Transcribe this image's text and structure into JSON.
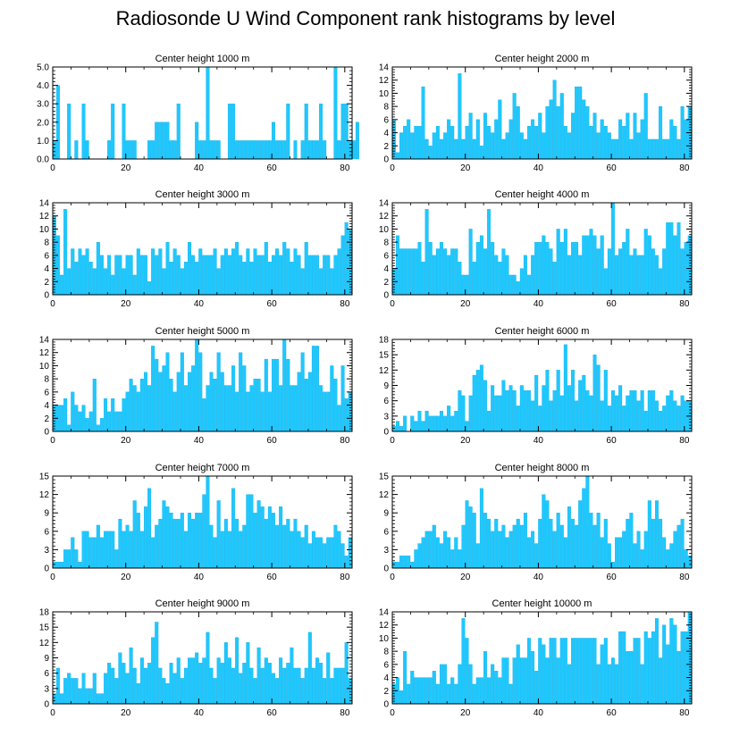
{
  "title": "Radiosonde U Wind Component rank histograms by level",
  "colors": {
    "bar": "#1ec8ff",
    "bar_edge": "#0aa6dc",
    "axis": "#000000"
  },
  "chart_data": [
    {
      "type": "bar",
      "title": "Center height 1000 m",
      "xlim": [
        0,
        82
      ],
      "ylim": [
        0,
        5
      ],
      "xticks": [
        0,
        20,
        40,
        60,
        80
      ],
      "xtick_labels": [
        "0",
        "20",
        "40",
        "60",
        "80"
      ],
      "yticks": [
        0,
        1,
        2,
        3,
        4,
        5
      ],
      "ytick_labels": [
        "0.0",
        "1.0",
        "2.0",
        "3.0",
        "4.0",
        "5.0"
      ],
      "values": [
        1,
        4,
        0,
        0,
        3,
        0,
        1,
        0,
        3,
        1,
        0,
        0,
        0,
        0,
        0,
        1,
        3,
        0,
        0,
        3,
        1,
        1,
        1,
        0,
        0,
        0,
        1,
        1,
        2,
        2,
        2,
        2,
        1,
        1,
        3,
        0,
        0,
        0,
        0,
        2,
        1,
        1,
        5,
        1,
        1,
        1,
        0,
        0,
        3,
        3,
        1,
        1,
        1,
        1,
        1,
        1,
        1,
        1,
        1,
        1,
        2,
        1,
        1,
        1,
        3,
        0,
        1,
        0,
        1,
        3,
        1,
        1,
        1,
        3,
        1,
        0,
        0,
        5,
        1,
        3,
        3,
        1,
        1,
        2
      ]
    },
    {
      "type": "bar",
      "title": "Center height 2000 m",
      "xlim": [
        0,
        82
      ],
      "ylim": [
        0,
        14
      ],
      "xticks": [
        0,
        20,
        40,
        60,
        80
      ],
      "xtick_labels": [
        "0",
        "20",
        "40",
        "60",
        "80"
      ],
      "yticks": [
        0,
        2,
        4,
        6,
        8,
        10,
        12,
        14
      ],
      "ytick_labels": [
        "0",
        "2",
        "4",
        "6",
        "8",
        "10",
        "12",
        "14"
      ],
      "values": [
        6,
        1,
        4,
        5,
        6,
        4,
        5,
        5,
        11,
        3,
        2,
        4,
        5,
        3,
        4,
        6,
        5,
        3,
        13,
        3,
        5,
        7,
        3,
        6,
        2,
        7,
        5,
        4,
        6,
        9,
        3,
        4,
        6,
        10,
        8,
        4,
        3,
        5,
        6,
        5,
        7,
        4,
        8,
        9,
        12,
        8,
        10,
        5,
        4,
        7,
        11,
        11,
        9,
        8,
        5,
        7,
        4,
        6,
        5,
        4,
        3,
        3,
        6,
        5,
        7,
        3,
        7,
        4,
        6,
        10,
        3,
        3,
        3,
        8,
        3,
        3,
        6,
        5,
        3,
        8,
        6,
        8
      ]
    },
    {
      "type": "bar",
      "title": "Center height 3000 m",
      "xlim": [
        0,
        82
      ],
      "ylim": [
        0,
        14
      ],
      "xticks": [
        0,
        20,
        40,
        60,
        80
      ],
      "xtick_labels": [
        "0",
        "20",
        "40",
        "60",
        "80"
      ],
      "yticks": [
        0,
        2,
        4,
        6,
        8,
        10,
        12,
        14
      ],
      "ytick_labels": [
        "0",
        "2",
        "4",
        "6",
        "8",
        "10",
        "12",
        "14"
      ],
      "values": [
        12,
        9,
        3,
        13,
        4,
        7,
        5,
        7,
        6,
        7,
        5,
        4,
        8,
        6,
        4,
        6,
        3,
        6,
        6,
        4,
        6,
        6,
        3,
        7,
        6,
        6,
        2,
        7,
        6,
        7,
        4,
        8,
        5,
        7,
        6,
        4,
        5,
        8,
        6,
        5,
        7,
        6,
        6,
        6,
        7,
        4,
        6,
        7,
        6,
        7,
        8,
        6,
        5,
        7,
        5,
        7,
        6,
        6,
        8,
        5,
        6,
        7,
        6,
        8,
        7,
        5,
        7,
        6,
        4,
        8,
        6,
        6,
        6,
        4,
        6,
        6,
        4,
        6,
        7,
        9,
        11,
        10
      ]
    },
    {
      "type": "bar",
      "title": "Center height 4000 m",
      "xlim": [
        0,
        82
      ],
      "ylim": [
        0,
        14
      ],
      "xticks": [
        0,
        20,
        40,
        60,
        80
      ],
      "xtick_labels": [
        "0",
        "20",
        "40",
        "60",
        "80"
      ],
      "yticks": [
        0,
        2,
        4,
        6,
        8,
        10,
        12,
        14
      ],
      "ytick_labels": [
        "0",
        "2",
        "4",
        "6",
        "8",
        "10",
        "12",
        "14"
      ],
      "values": [
        4,
        9,
        7,
        7,
        7,
        7,
        7,
        8,
        5,
        13,
        8,
        6,
        7,
        8,
        7,
        6,
        7,
        7,
        5,
        3,
        3,
        10,
        5,
        8,
        9,
        7,
        13,
        8,
        6,
        5,
        7,
        6,
        3,
        3,
        2,
        4,
        6,
        3,
        6,
        8,
        8,
        9,
        8,
        7,
        5,
        10,
        8,
        10,
        6,
        8,
        8,
        6,
        9,
        9,
        10,
        9,
        7,
        9,
        4,
        7,
        14,
        6,
        7,
        8,
        10,
        6,
        7,
        6,
        6,
        10,
        9,
        7,
        6,
        4,
        7,
        11,
        11,
        9,
        11,
        7,
        8,
        9
      ]
    },
    {
      "type": "bar",
      "title": "Center height 5000 m",
      "xlim": [
        0,
        82
      ],
      "ylim": [
        0,
        14
      ],
      "xticks": [
        0,
        20,
        40,
        60,
        80
      ],
      "xtick_labels": [
        "0",
        "20",
        "40",
        "60",
        "80"
      ],
      "yticks": [
        0,
        2,
        4,
        6,
        8,
        10,
        12,
        14
      ],
      "ytick_labels": [
        "0",
        "2",
        "4",
        "6",
        "8",
        "10",
        "12",
        "14"
      ],
      "values": [
        4,
        4,
        4,
        5,
        1,
        6,
        4,
        3,
        4,
        2,
        3,
        8,
        1,
        2,
        5,
        3,
        5,
        3,
        3,
        5,
        6,
        8,
        7,
        6,
        8,
        9,
        7,
        13,
        11,
        9,
        10,
        12,
        8,
        6,
        9,
        12,
        7,
        9,
        10,
        14,
        12,
        5,
        7,
        9,
        8,
        12,
        9,
        7,
        7,
        10,
        6,
        12,
        10,
        6,
        7,
        8,
        8,
        6,
        11,
        6,
        11,
        11,
        7,
        14,
        11,
        7,
        7,
        9,
        12,
        8,
        9,
        13,
        13,
        7,
        6,
        6,
        10,
        8,
        4,
        10,
        5,
        6
      ]
    },
    {
      "type": "bar",
      "title": "Center height 6000 m",
      "xlim": [
        0,
        82
      ],
      "ylim": [
        0,
        18
      ],
      "xticks": [
        0,
        20,
        40,
        60,
        80
      ],
      "xtick_labels": [
        "0",
        "20",
        "40",
        "60",
        "80"
      ],
      "yticks": [
        0,
        3,
        6,
        9,
        12,
        15,
        18
      ],
      "ytick_labels": [
        "0",
        "3",
        "6",
        "9",
        "12",
        "15",
        "18"
      ],
      "values": [
        1,
        2,
        1,
        3,
        0,
        3,
        2,
        4,
        2,
        4,
        3,
        3,
        3,
        4,
        3,
        5,
        3,
        4,
        8,
        7,
        2,
        7,
        11,
        12,
        13,
        10,
        4,
        9,
        7,
        7,
        10,
        8,
        9,
        8,
        5,
        9,
        8,
        8,
        6,
        11,
        5,
        9,
        12,
        6,
        8,
        12,
        7,
        17,
        9,
        12,
        6,
        10,
        11,
        8,
        7,
        15,
        13,
        6,
        12,
        5,
        8,
        7,
        9,
        5,
        7,
        8,
        8,
        6,
        8,
        4,
        8,
        8,
        6,
        4,
        5,
        7,
        8,
        6,
        5,
        7,
        6,
        6
      ]
    },
    {
      "type": "bar",
      "title": "Center height 7000 m",
      "xlim": [
        0,
        82
      ],
      "ylim": [
        0,
        15
      ],
      "xticks": [
        0,
        20,
        40,
        60,
        80
      ],
      "xtick_labels": [
        "0",
        "20",
        "40",
        "60",
        "80"
      ],
      "yticks": [
        0,
        3,
        6,
        9,
        12,
        15
      ],
      "ytick_labels": [
        "0",
        "3",
        "6",
        "9",
        "12",
        "15"
      ],
      "values": [
        1,
        1,
        1,
        3,
        3,
        5,
        3,
        1,
        6,
        6,
        5,
        5,
        7,
        5,
        6,
        6,
        6,
        3,
        8,
        6,
        7,
        6,
        11,
        9,
        6,
        10,
        13,
        5,
        7,
        8,
        11,
        10,
        9,
        8,
        8,
        9,
        6,
        9,
        8,
        9,
        9,
        12,
        15,
        7,
        5,
        11,
        6,
        8,
        6,
        13,
        8,
        6,
        7,
        12,
        12,
        9,
        11,
        10,
        8,
        10,
        9,
        7,
        10,
        7,
        8,
        6,
        8,
        6,
        5,
        7,
        4,
        6,
        5,
        5,
        4,
        5,
        5,
        7,
        6,
        4,
        2,
        5
      ]
    },
    {
      "type": "bar",
      "title": "Center height 8000 m",
      "xlim": [
        0,
        82
      ],
      "ylim": [
        0,
        15
      ],
      "xticks": [
        0,
        20,
        40,
        60,
        80
      ],
      "xtick_labels": [
        "0",
        "20",
        "40",
        "60",
        "80"
      ],
      "yticks": [
        0,
        3,
        6,
        9,
        12,
        15
      ],
      "ytick_labels": [
        "0",
        "3",
        "6",
        "9",
        "12",
        "15"
      ],
      "values": [
        1,
        1,
        2,
        2,
        2,
        1,
        3,
        4,
        5,
        6,
        6,
        7,
        5,
        4,
        6,
        5,
        3,
        5,
        3,
        7,
        11,
        10,
        9,
        4,
        13,
        9,
        8,
        6,
        8,
        6,
        7,
        5,
        6,
        7,
        8,
        7,
        9,
        5,
        6,
        4,
        8,
        12,
        11,
        8,
        6,
        9,
        7,
        5,
        10,
        8,
        7,
        11,
        13,
        15,
        9,
        7,
        9,
        5,
        8,
        4,
        1,
        5,
        5,
        6,
        8,
        9,
        4,
        6,
        3,
        6,
        11,
        8,
        11,
        8,
        5,
        3,
        4,
        6,
        7,
        8,
        3,
        2
      ]
    },
    {
      "type": "bar",
      "title": "Center height 9000 m",
      "xlim": [
        0,
        82
      ],
      "ylim": [
        0,
        18
      ],
      "xticks": [
        0,
        20,
        40,
        60,
        80
      ],
      "xtick_labels": [
        "0",
        "20",
        "40",
        "60",
        "80"
      ],
      "yticks": [
        0,
        3,
        6,
        9,
        12,
        15,
        18
      ],
      "ytick_labels": [
        "0",
        "3",
        "6",
        "9",
        "12",
        "15",
        "18"
      ],
      "values": [
        2,
        7,
        2,
        5,
        6,
        5,
        5,
        3,
        6,
        3,
        3,
        6,
        2,
        2,
        6,
        8,
        7,
        5,
        10,
        8,
        6,
        11,
        7,
        4,
        9,
        7,
        8,
        13,
        16,
        7,
        5,
        4,
        8,
        6,
        9,
        5,
        7,
        9,
        9,
        10,
        8,
        9,
        14,
        7,
        5,
        9,
        8,
        12,
        9,
        7,
        13,
        6,
        8,
        12,
        7,
        5,
        11,
        7,
        9,
        8,
        6,
        5,
        9,
        7,
        8,
        11,
        7,
        7,
        5,
        7,
        14,
        7,
        9,
        8,
        5,
        10,
        5,
        7,
        7,
        7,
        12,
        5
      ]
    },
    {
      "type": "bar",
      "title": "Center height 10000 m",
      "xlim": [
        0,
        82
      ],
      "ylim": [
        0,
        14
      ],
      "xticks": [
        0,
        20,
        40,
        60,
        80
      ],
      "xtick_labels": [
        "0",
        "20",
        "40",
        "60",
        "80"
      ],
      "yticks": [
        0,
        2,
        4,
        6,
        8,
        10,
        12,
        14
      ],
      "ytick_labels": [
        "0",
        "2",
        "4",
        "6",
        "8",
        "10",
        "12",
        "14"
      ],
      "values": [
        3,
        4,
        2,
        8,
        3,
        5,
        4,
        4,
        4,
        4,
        4,
        5,
        3,
        6,
        6,
        3,
        4,
        3,
        6,
        13,
        10,
        6,
        3,
        4,
        4,
        8,
        4,
        6,
        5,
        4,
        7,
        7,
        3,
        7,
        9,
        7,
        7,
        10,
        8,
        5,
        10,
        9,
        7,
        10,
        10,
        7,
        10,
        10,
        6,
        10,
        10,
        10,
        10,
        10,
        10,
        10,
        6,
        9,
        10,
        6,
        7,
        6,
        11,
        11,
        8,
        8,
        10,
        10,
        6,
        11,
        10,
        11,
        13,
        7,
        12,
        9,
        13,
        12,
        8,
        11,
        11,
        14
      ]
    }
  ]
}
